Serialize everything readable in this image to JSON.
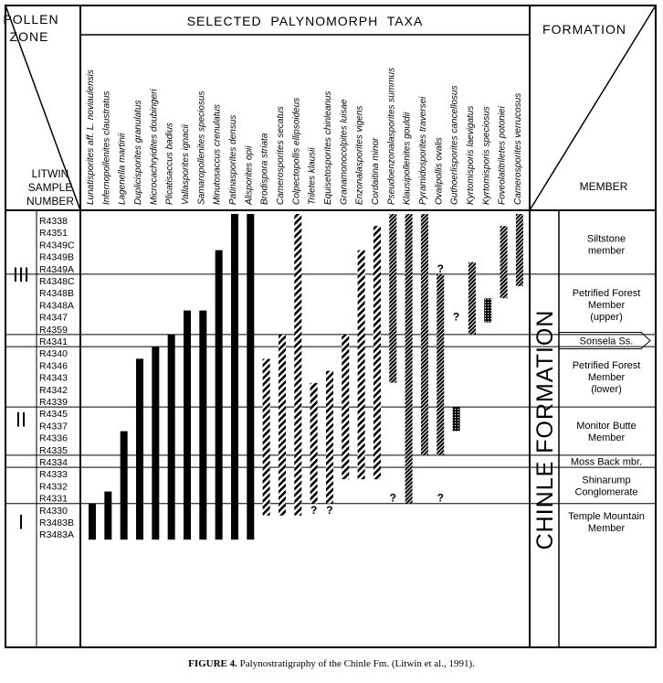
{
  "headers": {
    "pollen_zone": [
      "POLLEN",
      "ZONE"
    ],
    "litwin": [
      "LITWIN",
      "SAMPLE",
      "NUMBER"
    ],
    "taxa": "SELECTED  PALYNOMORPH  TAXA",
    "formation": "FORMATION",
    "member": "MEMBER"
  },
  "formation_name": "CHINLE FORMATION",
  "caption": {
    "label": "FIGURE 4.",
    "text": "Palynostratigraphy of the Chinle Fm. (Litwin et al., 1991)."
  },
  "chart_data": {
    "type": "range-chart",
    "title": "Palynostratigraphy of the Chinle Fm.",
    "samples": [
      "R4338",
      "R4351",
      "R4349C",
      "R4349B",
      "R4349A",
      "R4348C",
      "R4348B",
      "R4348A",
      "R4347",
      "R4359",
      "R4341",
      "R4340",
      "R4346",
      "R4343",
      "R4342",
      "R4339",
      "R4345",
      "R4337",
      "R4336",
      "R4335",
      "R4334",
      "R4333",
      "R4332",
      "R4331",
      "R4330",
      "R3483B",
      "R3483A"
    ],
    "pollen_zones": [
      {
        "label": "III",
        "from": "R4338",
        "to": "R4359"
      },
      {
        "label": "II",
        "from": "R4341",
        "to": "R4331"
      },
      {
        "label": "I",
        "from": "R4330",
        "to": "R3483A"
      }
    ],
    "members": [
      {
        "name": [
          "Siltstone",
          "member"
        ],
        "from": "R4338",
        "to": "R4349A"
      },
      {
        "name": [
          "Petrified Forest",
          "Member",
          "(upper)"
        ],
        "from": "R4348C",
        "to": "R4359"
      },
      {
        "name": [
          "Sonsela Ss."
        ],
        "from": "R4341",
        "to": "R4341"
      },
      {
        "name": [
          "Petrified Forest",
          "Member",
          "(lower)"
        ],
        "from": "R4340",
        "to": "R4339"
      },
      {
        "name": [
          "Monitor Butte",
          "Member"
        ],
        "from": "R4345",
        "to": "R4335"
      },
      {
        "name": [
          "Moss Back mbr."
        ],
        "from": "R4334",
        "to": "R4334"
      },
      {
        "name": [
          "Shinarump",
          "Conglomerate"
        ],
        "from": "R4333",
        "to": "R4331"
      },
      {
        "name": [
          "Temple Mountain",
          "Member"
        ],
        "from": "R4330",
        "to": "R3483A"
      }
    ],
    "taxa": [
      {
        "name": "Lunatisporites aff. L. noviaulensis",
        "style": "solid",
        "top": "R4330",
        "bottom": "R3483A"
      },
      {
        "name": "Infernopollenites claustratus",
        "style": "solid",
        "top": "R4331",
        "bottom": "R3483A"
      },
      {
        "name": "Lagenella martinii",
        "style": "solid",
        "top": "R4336",
        "bottom": "R3483A"
      },
      {
        "name": "Duplicisporites granulatus",
        "style": "solid",
        "top": "R4346",
        "bottom": "R3483A"
      },
      {
        "name": "Microcachryidites doubingeri",
        "style": "solid",
        "top": "R4340",
        "bottom": "R3483A"
      },
      {
        "name": "Plicatisaccus badius",
        "style": "solid",
        "top": "R4341",
        "bottom": "R3483A"
      },
      {
        "name": "Vallasporites ignacii",
        "style": "solid",
        "top": "R4347",
        "bottom": "R3483A"
      },
      {
        "name": "Samaropollenites speciosus",
        "style": "solid",
        "top": "R4347",
        "bottom": "R3483A"
      },
      {
        "name": "Minutosaccus crenulatus",
        "style": "solid",
        "top": "R4349B",
        "bottom": "R3483A"
      },
      {
        "name": "Patinasporites densus",
        "style": "solid",
        "top": "R4338",
        "bottom": "R3483A"
      },
      {
        "name": "Alisporites opii",
        "style": "solid",
        "top": "R4338",
        "bottom": "R3483A"
      },
      {
        "name": "Brodispora striata",
        "style": "hatched",
        "top": "R4346",
        "bottom": "R4330"
      },
      {
        "name": "Camerosporites secatus",
        "style": "hatched",
        "top": "R4341",
        "bottom": "R4330"
      },
      {
        "name": "Colpectopollis ellipsoideus",
        "style": "hatched",
        "top": "R4338",
        "bottom": "R4330"
      },
      {
        "name": "Triletes klausii",
        "style": "hatched",
        "top": "R4342",
        "bottom": "R4331",
        "question_below": "R4330"
      },
      {
        "name": "Equisetosporites chinleanus",
        "style": "hatched",
        "top": "R4343",
        "bottom": "R4331",
        "question_below": "R4330"
      },
      {
        "name": "Granamonocolpites luisae",
        "style": "hatched",
        "top": "R4341",
        "bottom": "R4333"
      },
      {
        "name": "Enzonalasporites vigens",
        "style": "hatched",
        "top": "R4349B",
        "bottom": "R4333"
      },
      {
        "name": "Cordaitina minor",
        "style": "hatched",
        "top": "R4351",
        "bottom": "R4333"
      },
      {
        "name": "Pseudoenzonalasporites summus",
        "style": "dark",
        "top": "R4338",
        "bottom": "R4343",
        "question_below": "R4331"
      },
      {
        "name": "Klausipollenites gouldii",
        "style": "dark",
        "top": "R4338",
        "bottom": "R4331"
      },
      {
        "name": "Pyramidosporites traversei",
        "style": "dark",
        "top": "R4338",
        "bottom": "R4335"
      },
      {
        "name": "Ovalipollis ovalis",
        "style": "dark",
        "top": "R4348C",
        "bottom": "R4335",
        "question_above": "R4349A",
        "question_below": "R4331"
      },
      {
        "name": "Guthoerlisporites cancellosus",
        "style": "dotted",
        "top": "R4345",
        "bottom": "R4337",
        "question_above": "R4347"
      },
      {
        "name": "Kyrtomisporis laevigatus",
        "style": "dark",
        "top": "R4349A",
        "bottom": "R4359"
      },
      {
        "name": "Kyrtomisporis speciosus",
        "style": "dotted",
        "top": "R4348A",
        "bottom": "R4347"
      },
      {
        "name": "Foveolatitriletes potoniei",
        "style": "dark",
        "top": "R4351",
        "bottom": "R4348B"
      },
      {
        "name": "Camerosporites verrucosus",
        "style": "dark",
        "top": "R4338",
        "bottom": "R4348C"
      }
    ]
  }
}
